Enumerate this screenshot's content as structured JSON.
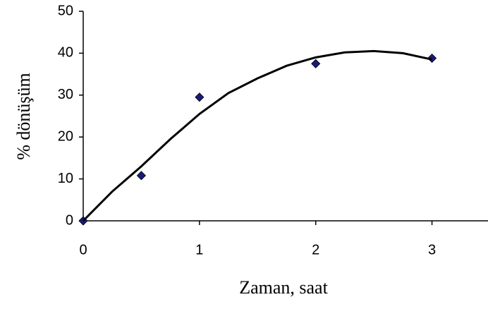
{
  "chart_data": {
    "type": "scatter",
    "x_label": "Zaman, saat",
    "y_label": "% dönüşüm",
    "xlim": [
      0,
      3.5
    ],
    "xticks": [
      0,
      1,
      2,
      3
    ],
    "ylim": [
      0,
      50
    ],
    "yticks": [
      0,
      10,
      20,
      30,
      40,
      50
    ],
    "series": [
      {
        "color": "#1a1a7a",
        "marker": "diamond",
        "x": [
          0,
          0.5,
          1,
          2,
          3
        ],
        "values": [
          0,
          10.8,
          29.5,
          37.5,
          38.8
        ]
      },
      {
        "color": "#000000",
        "line": true,
        "x": [
          0,
          0.25,
          0.5,
          0.75,
          1,
          1.25,
          1.5,
          1.75,
          2,
          2.25,
          2.5,
          2.75,
          3
        ],
        "values": [
          0,
          7,
          13,
          19.5,
          25.5,
          30.5,
          34,
          37,
          39,
          40.2,
          40.5,
          40,
          38.5
        ]
      }
    ]
  }
}
